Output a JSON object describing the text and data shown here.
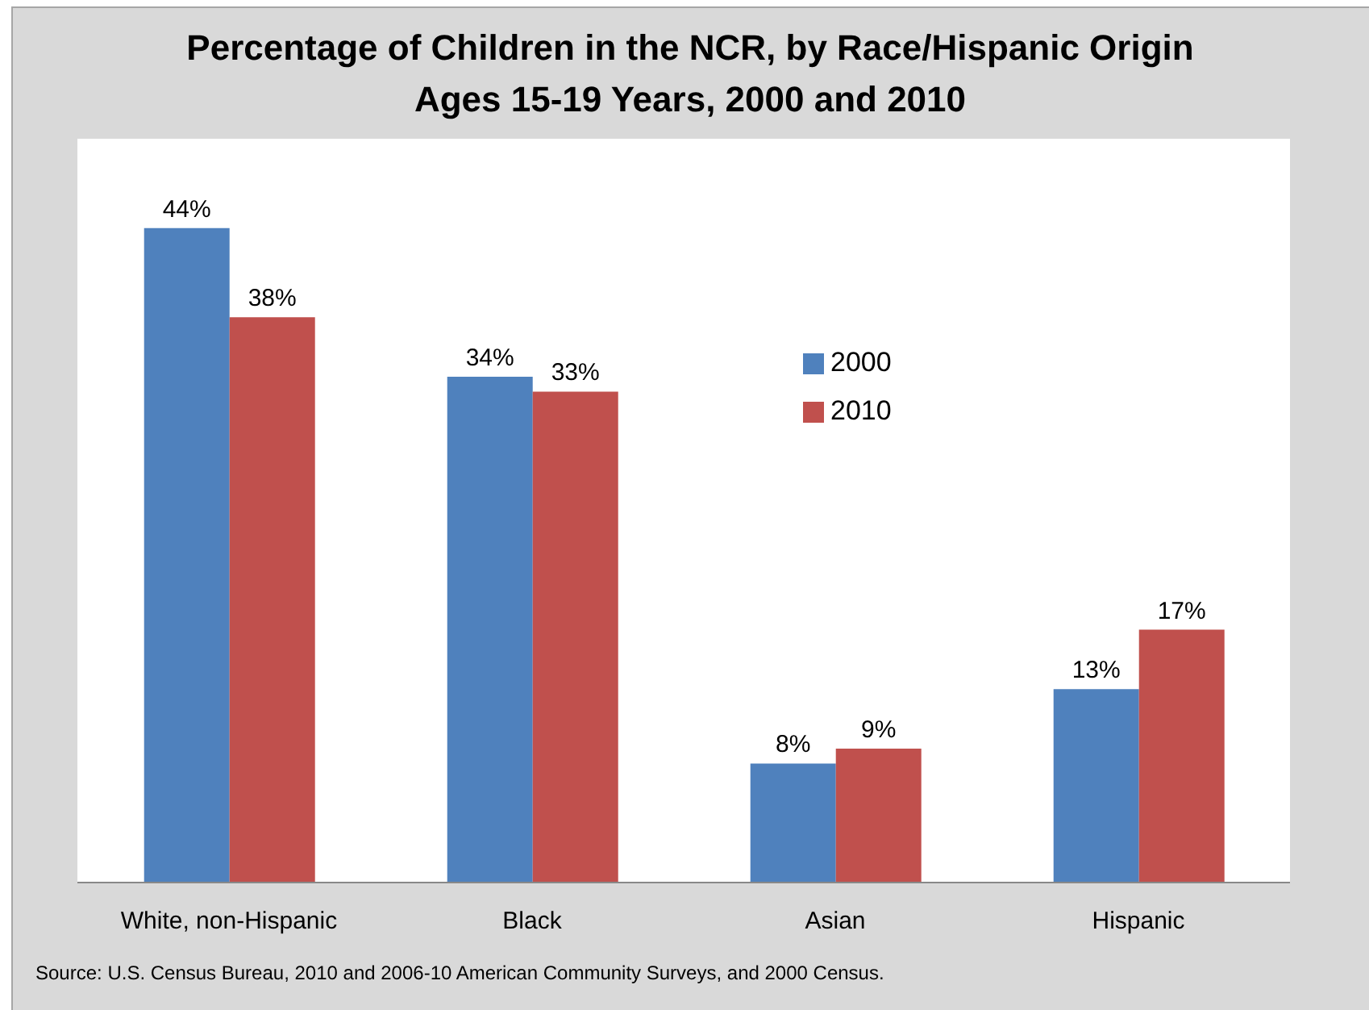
{
  "chart_data": {
    "type": "bar",
    "title": "Percentage of Children in the NCR, by Race/Hispanic Origin",
    "subtitle": "Ages 15-19 Years, 2000 and 2010",
    "categories": [
      "White, non-Hispanic",
      "Black",
      "Asian",
      "Hispanic"
    ],
    "series": [
      {
        "name": "2000",
        "color": "#4f81bd",
        "values": [
          44,
          34,
          8,
          13
        ],
        "value_labels": [
          "44%",
          "34%",
          "8%",
          "13%"
        ]
      },
      {
        "name": "2010",
        "color": "#c0504d",
        "values": [
          38,
          33,
          9,
          17
        ],
        "value_labels": [
          "38%",
          "33%",
          "9%",
          "17%"
        ]
      }
    ],
    "legend": "top right",
    "tick_labels": "x",
    "annotations": [
      "Source: U.S. Census Bureau, 2010 and 2006-10 American Community Surveys, and 2000 Census."
    ]
  }
}
